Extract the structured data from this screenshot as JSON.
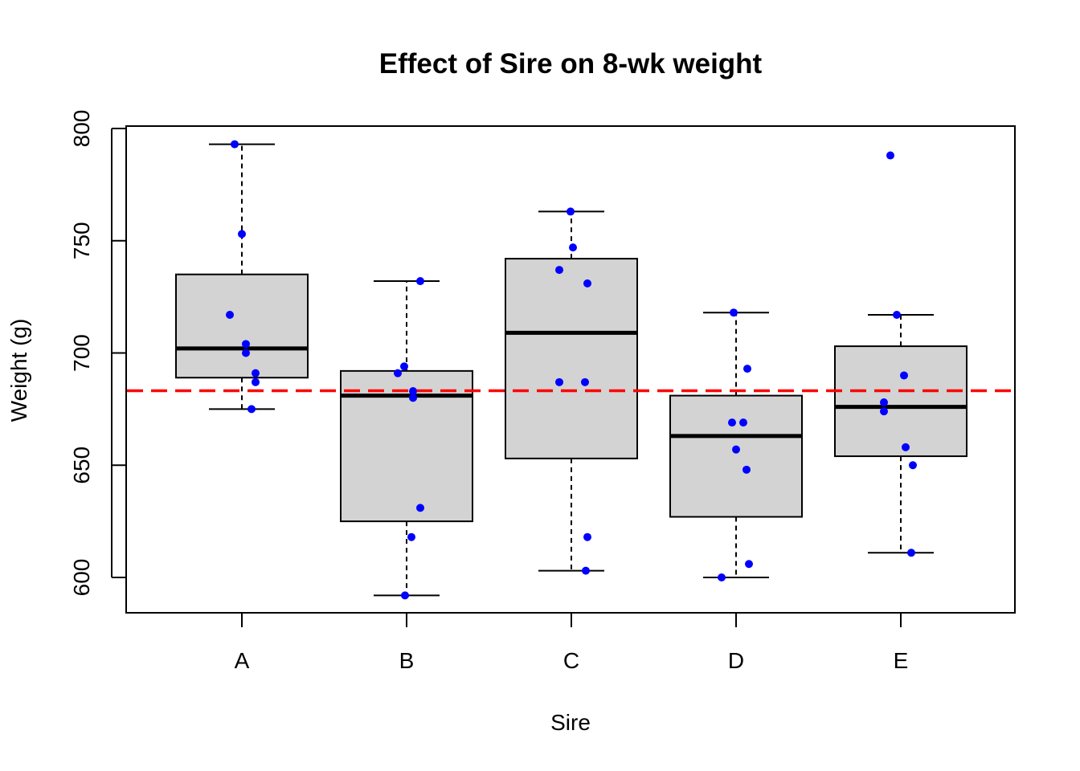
{
  "chart_data": {
    "type": "boxplot",
    "title": "Effect of Sire on 8-wk weight",
    "xlabel": "Sire",
    "ylabel": "Weight (g)",
    "ylim": [
      584,
      801
    ],
    "yticks": [
      600,
      650,
      700,
      750,
      800
    ],
    "categories": [
      "A",
      "B",
      "C",
      "D",
      "E"
    ],
    "boxes": [
      {
        "category": "A",
        "whisker_low": 675,
        "q1": 689,
        "median": 702,
        "q3": 735,
        "whisker_high": 793
      },
      {
        "category": "B",
        "whisker_low": 592,
        "q1": 625,
        "median": 681,
        "q3": 692,
        "whisker_high": 732
      },
      {
        "category": "C",
        "whisker_low": 603,
        "q1": 653,
        "median": 709,
        "q3": 742,
        "whisker_high": 763
      },
      {
        "category": "D",
        "whisker_low": 600,
        "q1": 627,
        "median": 663,
        "q3": 681,
        "whisker_high": 718
      },
      {
        "category": "E",
        "whisker_low": 611,
        "q1": 654,
        "median": 676,
        "q3": 703,
        "whisker_high": 717
      }
    ],
    "points": {
      "A": [
        793,
        753,
        717,
        704,
        700,
        691,
        687,
        675
      ],
      "B": [
        732,
        694,
        691,
        683,
        680,
        631,
        618,
        592
      ],
      "C": [
        763,
        747,
        737,
        731,
        687,
        687,
        618,
        603
      ],
      "D": [
        718,
        693,
        669,
        669,
        657,
        648,
        606,
        600
      ],
      "E": [
        788,
        717,
        690,
        678,
        674,
        658,
        650,
        611
      ]
    },
    "reference_line": {
      "value": 683.2,
      "style": "dashed"
    },
    "colors": {
      "box_fill": "#d3d3d3",
      "box_stroke": "#000000",
      "points": "#0000ff",
      "reference_line": "#ff0000"
    },
    "grid": false,
    "legend": "none"
  }
}
